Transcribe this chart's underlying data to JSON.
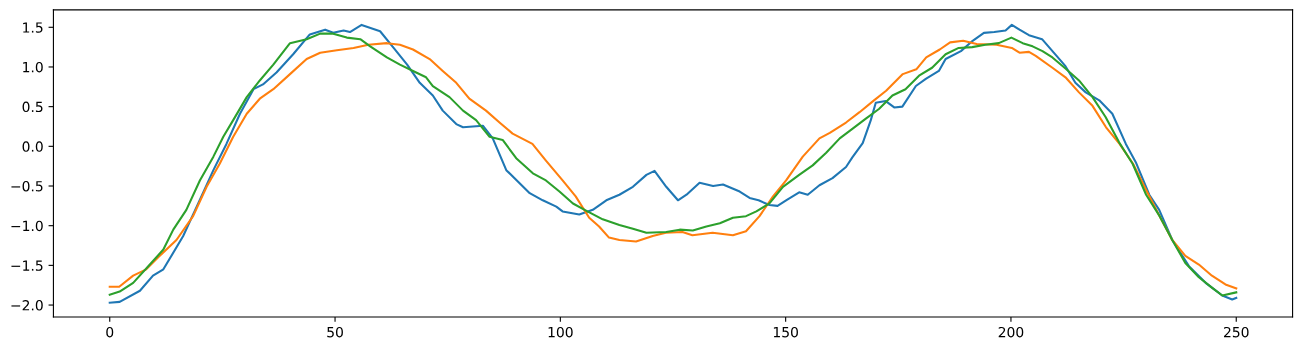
{
  "chart_data": {
    "type": "line",
    "xlim": [
      -12.5,
      262.5
    ],
    "ylim": [
      -2.15,
      1.72
    ],
    "xticks": [
      0,
      50,
      100,
      150,
      200,
      250
    ],
    "yticks": [
      {
        "value": -2.0,
        "label": "−2.0"
      },
      {
        "value": -1.5,
        "label": "−1.5"
      },
      {
        "value": -1.0,
        "label": "−1.0"
      },
      {
        "value": -0.5,
        "label": "−0.5"
      },
      {
        "value": 0,
        "label": "0.0"
      },
      {
        "value": 0.5,
        "label": "0.5"
      },
      {
        "value": 1,
        "label": "1.0"
      },
      {
        "value": 1.5,
        "label": "1.5"
      }
    ],
    "marker": "none",
    "line_style": "solid",
    "series": [
      {
        "color": "#1f77b4",
        "x": [
          0,
          2.2,
          6.7,
          9.6,
          11.9,
          16.3,
          19.3,
          23,
          25.9,
          28.9,
          31.9,
          34,
          37,
          40.7,
          44.4,
          47.8,
          49.6,
          51.9,
          53.3,
          55.9,
          60,
          63,
          66,
          68.8,
          71.7,
          73.9,
          76.9,
          78.4,
          82.8,
          85,
          88,
          93.2,
          96.1,
          99.1,
          100.5,
          104.2,
          107.2,
          110.2,
          113.1,
          116.1,
          119.1,
          120.9,
          123.5,
          126.1,
          128,
          130.9,
          133.9,
          136.1,
          139.8,
          142,
          144,
          146.4,
          148.2,
          150.1,
          153,
          154.9,
          157.5,
          160.4,
          163.4,
          164.8,
          167.1,
          168.9,
          170,
          172.2,
          174.1,
          175.9,
          178.9,
          181.1,
          184,
          185.5,
          188.9,
          191.5,
          194,
          196.3,
          198.8,
          200.2,
          201.9,
          204,
          206.9,
          209.5,
          212.1,
          214.3,
          216.6,
          219.6,
          222.5,
          225.5,
          227.7,
          230.7,
          232.9,
          235.8,
          239.5,
          243.2,
          246.9,
          249.1,
          250
        ],
        "values": [
          -1.97,
          -1.96,
          -1.82,
          -1.63,
          -1.55,
          -1.13,
          -0.76,
          -0.3,
          0.03,
          0.41,
          0.72,
          0.78,
          0.93,
          1.16,
          1.41,
          1.47,
          1.43,
          1.46,
          1.44,
          1.53,
          1.45,
          1.24,
          1.03,
          0.8,
          0.64,
          0.45,
          0.28,
          0.24,
          0.26,
          0.1,
          -0.3,
          -0.59,
          -0.68,
          -0.76,
          -0.82,
          -0.86,
          -0.8,
          -0.68,
          -0.61,
          -0.51,
          -0.36,
          -0.31,
          -0.51,
          -0.68,
          -0.61,
          -0.46,
          -0.5,
          -0.48,
          -0.57,
          -0.65,
          -0.68,
          -0.74,
          -0.75,
          -0.68,
          -0.58,
          -0.61,
          -0.49,
          -0.4,
          -0.26,
          -0.14,
          0.04,
          0.33,
          0.55,
          0.57,
          0.49,
          0.5,
          0.76,
          0.85,
          0.95,
          1.1,
          1.2,
          1.33,
          1.43,
          1.44,
          1.46,
          1.53,
          1.47,
          1.4,
          1.35,
          1.18,
          1.01,
          0.8,
          0.68,
          0.58,
          0.41,
          0.03,
          -0.2,
          -0.61,
          -0.8,
          -1.18,
          -1.51,
          -1.72,
          -1.88,
          -1.93,
          -1.91
        ]
      },
      {
        "color": "#ff7f0e",
        "x": [
          0,
          2.1,
          5.2,
          8.1,
          11.1,
          14.8,
          18.5,
          21.5,
          24.4,
          27.4,
          30.4,
          33.3,
          36.3,
          40,
          43.7,
          46.7,
          50.4,
          54.1,
          57.4,
          61.5,
          64.4,
          67.3,
          71,
          73.9,
          76.9,
          79.8,
          83.5,
          86.5,
          89.4,
          93.8,
          96.8,
          100.5,
          103.4,
          106.4,
          108.6,
          110.8,
          113.1,
          116.8,
          120.5,
          123.4,
          127.1,
          129.3,
          133.8,
          138.3,
          141.2,
          144.2,
          147.2,
          150.1,
          153.8,
          157.5,
          159.8,
          163.4,
          166.4,
          169.4,
          172.3,
          176,
          179,
          181.2,
          184.2,
          186.5,
          189.4,
          192.4,
          196.8,
          200.2,
          201.9,
          204,
          205.5,
          209.2,
          212.1,
          215.1,
          218.1,
          221.1,
          224.1,
          227.1,
          230,
          233,
          235.8,
          238.7,
          241.7,
          244.6,
          247.6,
          250
        ],
        "values": [
          -1.77,
          -1.77,
          -1.63,
          -1.55,
          -1.38,
          -1.18,
          -0.88,
          -0.51,
          -0.22,
          0.12,
          0.41,
          0.6,
          0.72,
          0.91,
          1.1,
          1.18,
          1.21,
          1.24,
          1.28,
          1.3,
          1.28,
          1.22,
          1.1,
          0.95,
          0.8,
          0.6,
          0.45,
          0.3,
          0.16,
          0.03,
          -0.18,
          -0.43,
          -0.63,
          -0.9,
          -1.01,
          -1.15,
          -1.18,
          -1.2,
          -1.13,
          -1.09,
          -1.08,
          -1.12,
          -1.09,
          -1.12,
          -1.07,
          -0.88,
          -0.63,
          -0.43,
          -0.13,
          0.1,
          0.17,
          0.3,
          0.43,
          0.57,
          0.7,
          0.91,
          0.97,
          1.12,
          1.22,
          1.31,
          1.33,
          1.29,
          1.28,
          1.24,
          1.18,
          1.19,
          1.14,
          0.99,
          0.87,
          0.68,
          0.51,
          0.24,
          0.03,
          -0.22,
          -0.55,
          -0.88,
          -1.18,
          -1.38,
          -1.49,
          -1.63,
          -1.74,
          -1.79
        ]
      },
      {
        "color": "#2ca02c",
        "x": [
          0,
          2.2,
          5.2,
          8.9,
          11.9,
          14.1,
          17,
          20,
          23,
          25.2,
          27.4,
          30.4,
          33.3,
          36.3,
          40,
          43.7,
          46.7,
          49.6,
          52.6,
          55.6,
          57.8,
          61.5,
          64.4,
          68,
          70.2,
          71.7,
          75.4,
          78.4,
          81.3,
          84.3,
          87.2,
          90.2,
          93.9,
          96.8,
          99.8,
          102.8,
          105.7,
          109.4,
          113.1,
          116.1,
          119.1,
          123.5,
          126.5,
          129.4,
          132.4,
          135.4,
          138.3,
          141.2,
          143.5,
          146.4,
          149.4,
          153,
          156,
          159,
          162,
          164.8,
          167.8,
          170.7,
          173.7,
          176.6,
          179.6,
          182.5,
          185.5,
          188.4,
          191.4,
          194.3,
          197.3,
          200.1,
          202.6,
          204.8,
          207,
          209.2,
          212.1,
          215.1,
          218.1,
          221,
          224,
          227,
          230,
          233,
          235.8,
          238.7,
          241.7,
          244.6,
          246.9,
          250
        ],
        "values": [
          -1.87,
          -1.83,
          -1.72,
          -1.49,
          -1.3,
          -1.05,
          -0.8,
          -0.43,
          -0.13,
          0.12,
          0.33,
          0.62,
          0.83,
          1.03,
          1.3,
          1.35,
          1.42,
          1.42,
          1.37,
          1.35,
          1.26,
          1.12,
          1.03,
          0.93,
          0.87,
          0.76,
          0.62,
          0.45,
          0.33,
          0.12,
          0.08,
          -0.15,
          -0.34,
          -0.43,
          -0.57,
          -0.72,
          -0.81,
          -0.92,
          -0.99,
          -1.04,
          -1.09,
          -1.08,
          -1.05,
          -1.06,
          -1.01,
          -0.97,
          -0.9,
          -0.88,
          -0.82,
          -0.72,
          -0.51,
          -0.36,
          -0.24,
          -0.08,
          0.1,
          0.22,
          0.35,
          0.47,
          0.64,
          0.72,
          0.89,
          0.99,
          1.16,
          1.24,
          1.25,
          1.28,
          1.3,
          1.37,
          1.3,
          1.26,
          1.2,
          1.12,
          0.98,
          0.83,
          0.62,
          0.37,
          0.05,
          -0.22,
          -0.61,
          -0.88,
          -1.18,
          -1.47,
          -1.65,
          -1.78,
          -1.88,
          -1.84
        ]
      }
    ]
  }
}
